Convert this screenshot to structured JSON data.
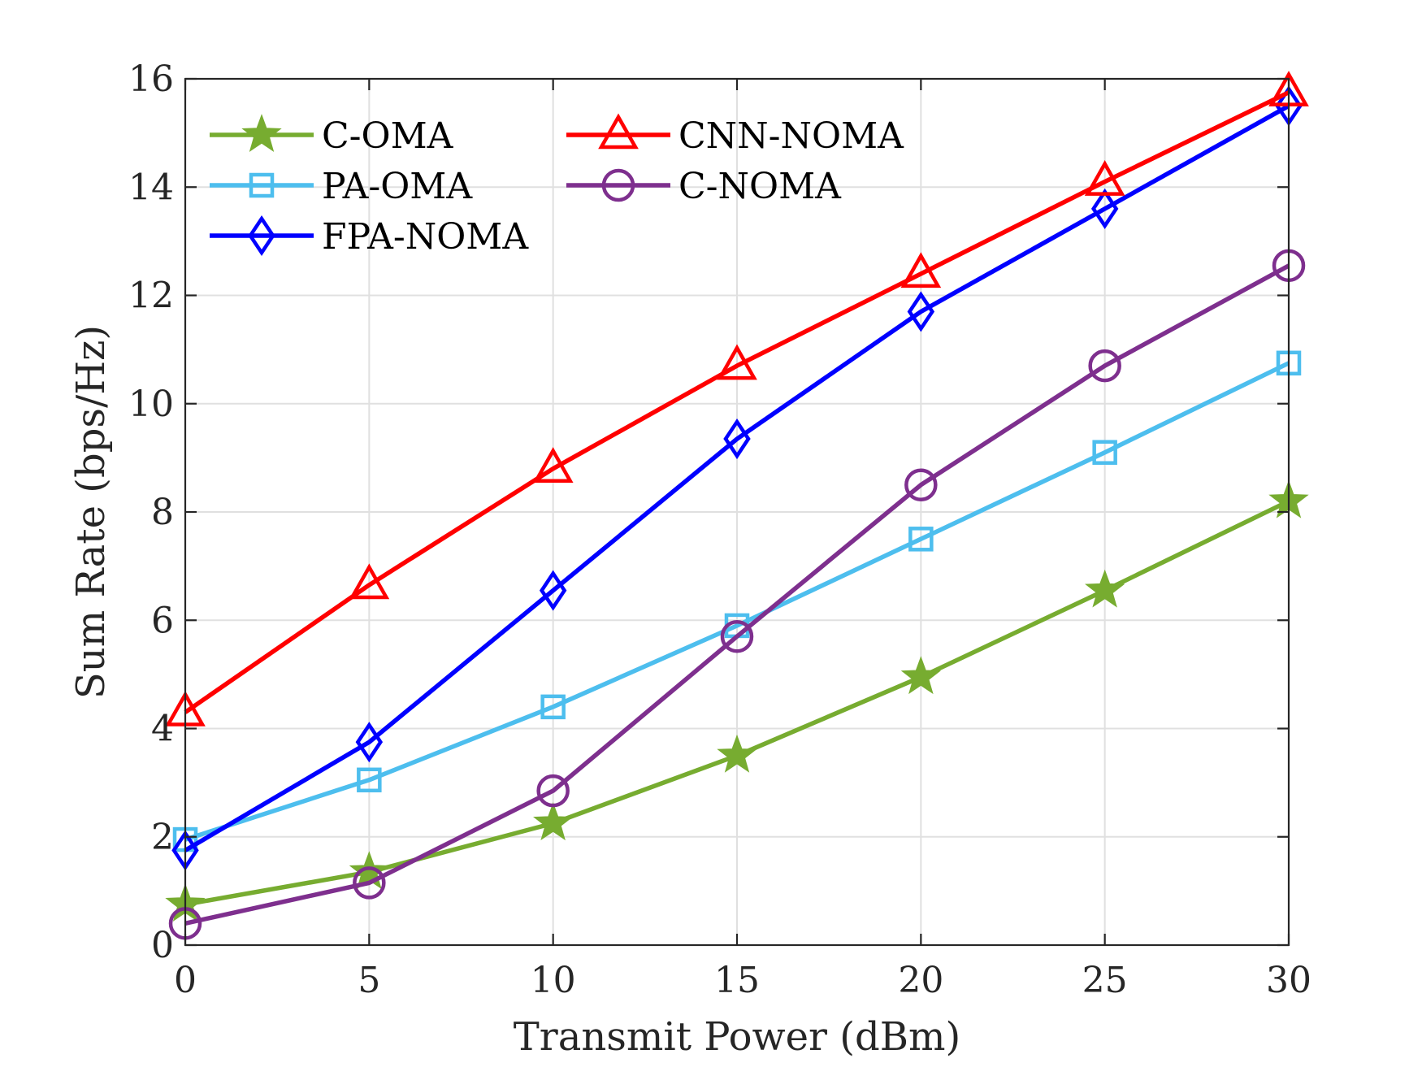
{
  "chart_data": {
    "type": "line",
    "title": "",
    "xlabel": "Transmit Power (dBm)",
    "ylabel": "Sum Rate (bps/Hz)",
    "x": [
      0,
      5,
      10,
      15,
      20,
      25,
      30
    ],
    "xlim": [
      0,
      30
    ],
    "ylim": [
      0,
      16
    ],
    "xticks": [
      0,
      5,
      10,
      15,
      20,
      25,
      30
    ],
    "yticks": [
      0,
      2,
      4,
      6,
      8,
      10,
      12,
      14,
      16
    ],
    "grid": true,
    "legend_location": "top-left",
    "series": [
      {
        "name": "C-OMA",
        "color": "#77AC30",
        "marker": "star",
        "values": [
          0.75,
          1.35,
          2.25,
          3.5,
          4.95,
          6.55,
          8.2
        ]
      },
      {
        "name": "PA-OMA",
        "color": "#4DBEEE",
        "marker": "square",
        "values": [
          1.95,
          3.05,
          4.4,
          5.9,
          7.5,
          9.1,
          10.75
        ]
      },
      {
        "name": "FPA-NOMA",
        "color": "#0000FF",
        "marker": "diamond",
        "values": [
          1.75,
          3.75,
          6.55,
          9.35,
          11.7,
          13.6,
          15.5
        ]
      },
      {
        "name": "CNN-NOMA",
        "color": "#FF0000",
        "marker": "triangle",
        "values": [
          4.3,
          6.65,
          8.8,
          10.7,
          12.4,
          14.1,
          15.75
        ]
      },
      {
        "name": "C-NOMA",
        "color": "#7E2F8E",
        "marker": "circle",
        "values": [
          0.4,
          1.15,
          2.85,
          5.7,
          8.5,
          10.7,
          12.55
        ]
      }
    ]
  }
}
